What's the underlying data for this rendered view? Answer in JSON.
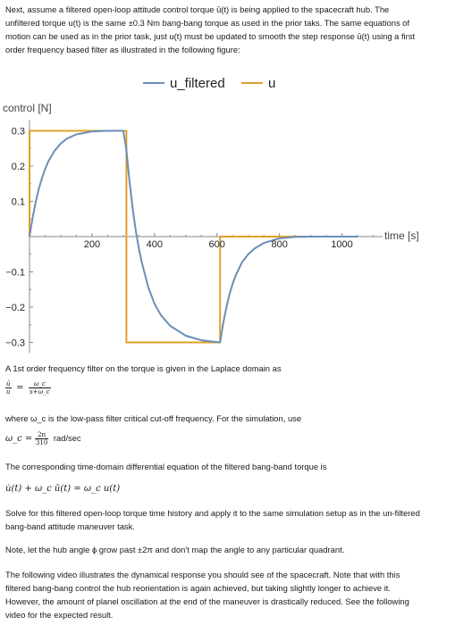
{
  "intro": {
    "line1": "Next, assume a filtered open-loop attitude control torque ū(t) is being applied to the spacecraft hub.  The",
    "line2": "unfiltered torque u(t) is the same ±0.3 Nm bang-bang torque as used in the prior taks.  The same equations of",
    "line3": "motion can be used as in the prior task, just u(t) must be updated to smooth the step response ū(t) using a first",
    "line4": "order frequency based filter as illustrated in the following figure:"
  },
  "chart_data": {
    "type": "line",
    "ylabel": "control [N]",
    "xlabel": "time [s]",
    "xlim": [
      0,
      1130
    ],
    "ylim": [
      -0.33,
      0.33
    ],
    "xticks": [
      200,
      400,
      600,
      800,
      1000
    ],
    "yticks": [
      -0.3,
      -0.2,
      -0.1,
      0.1,
      0.2,
      0.3
    ],
    "xtick_labels": [
      "200",
      "400",
      "600",
      "800",
      "1000"
    ],
    "ytick_labels": [
      "−0.3",
      "−0.2",
      "−0.1",
      "0.1",
      "0.2",
      "0.3"
    ],
    "grid": false,
    "legend": "top-center",
    "series": [
      {
        "name": "u_filtered",
        "color": "#6a8fb8",
        "x": [
          0,
          10,
          20,
          30,
          40,
          50,
          60,
          80,
          100,
          120,
          150,
          200,
          250,
          300,
          310,
          320,
          330,
          340,
          350,
          360,
          380,
          400,
          420,
          450,
          500,
          550,
          610,
          620,
          630,
          640,
          650,
          660,
          680,
          700,
          720,
          750,
          800,
          850,
          900,
          950,
          1000,
          1050
        ],
        "y": [
          0,
          0.054,
          0.099,
          0.136,
          0.166,
          0.192,
          0.213,
          0.243,
          0.264,
          0.278,
          0.29,
          0.298,
          0.3,
          0.3,
          0.246,
          0.156,
          0.08,
          0.018,
          -0.033,
          -0.075,
          -0.143,
          -0.19,
          -0.222,
          -0.253,
          -0.281,
          -0.294,
          -0.3,
          -0.246,
          -0.201,
          -0.164,
          -0.134,
          -0.11,
          -0.073,
          -0.05,
          -0.034,
          -0.018,
          -0.005,
          -0.001,
          0,
          0,
          0,
          0
        ]
      },
      {
        "name": "u",
        "color": "#e0a028",
        "x": [
          0,
          0,
          310,
          310,
          610,
          610,
          1050
        ],
        "y": [
          0,
          0.3,
          0.3,
          -0.3,
          -0.3,
          0,
          0
        ]
      }
    ]
  },
  "filter": {
    "intro": "A 1st order frequency filter on the torque is given in the Laplace domain as",
    "lhs_num": "ū",
    "lhs_den": "u",
    "equals": "=",
    "rhs_num": "ω_c",
    "rhs_den": "s+ω_c"
  },
  "cutoff": {
    "line": "where ω_c is the low-pass filter critical cut-off frequency.  For the simulation, use",
    "lhs": "ω_c =",
    "num": "2π",
    "den": "310",
    "unit": "rad/sec"
  },
  "ode": {
    "intro": "The corresponding time-domain differential equation of the filtered bang-band torque is",
    "equation": "u̇(t) + ω_c ū(t) = ω_c u(t)"
  },
  "solve": {
    "line1": "Solve for this filtered open-loop torque time history and apply it to the same simulation setup as in the un-filtered",
    "line2": "bang-band attitude maneuver task."
  },
  "note": "Note, let the hub angle ϕ grow past ±2π and don't map the angle to any particular quadrant.",
  "video": {
    "line1": "The following video illustrates the dynamical response you should see of the spacecraft.  Note that with this",
    "line2": "filtered bang-bang control the hub reorientation is again achieved, but taking slightly longer to achieve it.",
    "line3": "However, the amount of planel oscillation at the end of the maneuver is drastically reduced.  See the following",
    "line4": "video for the expected result."
  }
}
